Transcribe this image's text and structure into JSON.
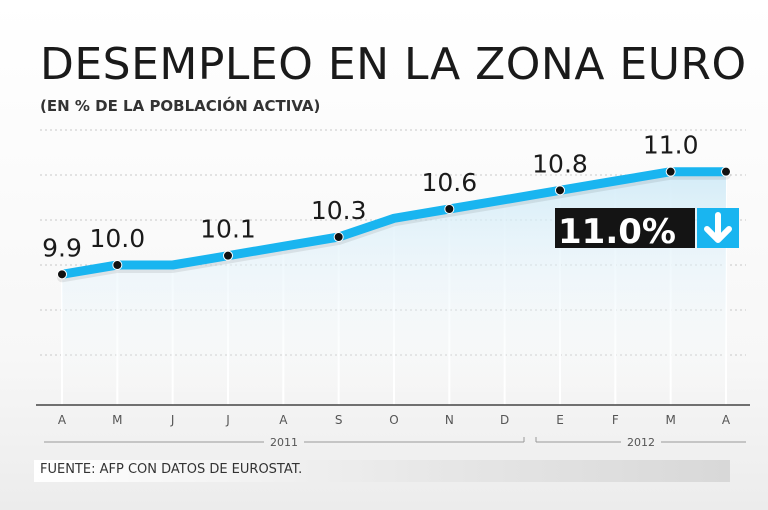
{
  "chart_data": {
    "type": "line",
    "title": "DESEMPLEO EN LA ZONA EURO",
    "subtitle": "(EN % DE LA POBLACIÓN ACTIVA)",
    "source": "FUENTE: AFP CON DATOS DE EUROSTAT.",
    "categories": [
      "A",
      "M",
      "J",
      "J",
      "A",
      "S",
      "O",
      "N",
      "D",
      "E",
      "F",
      "M",
      "A"
    ],
    "values": [
      9.9,
      10.0,
      10.0,
      10.1,
      10.2,
      10.3,
      10.5,
      10.6,
      10.7,
      10.8,
      10.9,
      11.0,
      11.0
    ],
    "data_labels": [
      {
        "index": 0,
        "text": "9.9"
      },
      {
        "index": 1,
        "text": "10.0"
      },
      {
        "index": 3,
        "text": "10.1"
      },
      {
        "index": 5,
        "text": "10.3"
      },
      {
        "index": 7,
        "text": "10.6"
      },
      {
        "index": 9,
        "text": "10.8"
      },
      {
        "index": 11,
        "text": "11.0"
      }
    ],
    "markers": [
      0,
      1,
      3,
      5,
      7,
      9,
      11,
      12
    ],
    "years": [
      {
        "label": "2011",
        "from": 0,
        "to": 8
      },
      {
        "label": "2012",
        "from": 9,
        "to": 12
      }
    ],
    "badge": {
      "text": "11.0%",
      "trend": "down"
    },
    "ylim": [
      8.5,
      11.5
    ],
    "colors": {
      "line": "#19b5f0",
      "marker": "#111111",
      "badge_bg": "#141414",
      "arrow_bg": "#19b5f0"
    }
  }
}
